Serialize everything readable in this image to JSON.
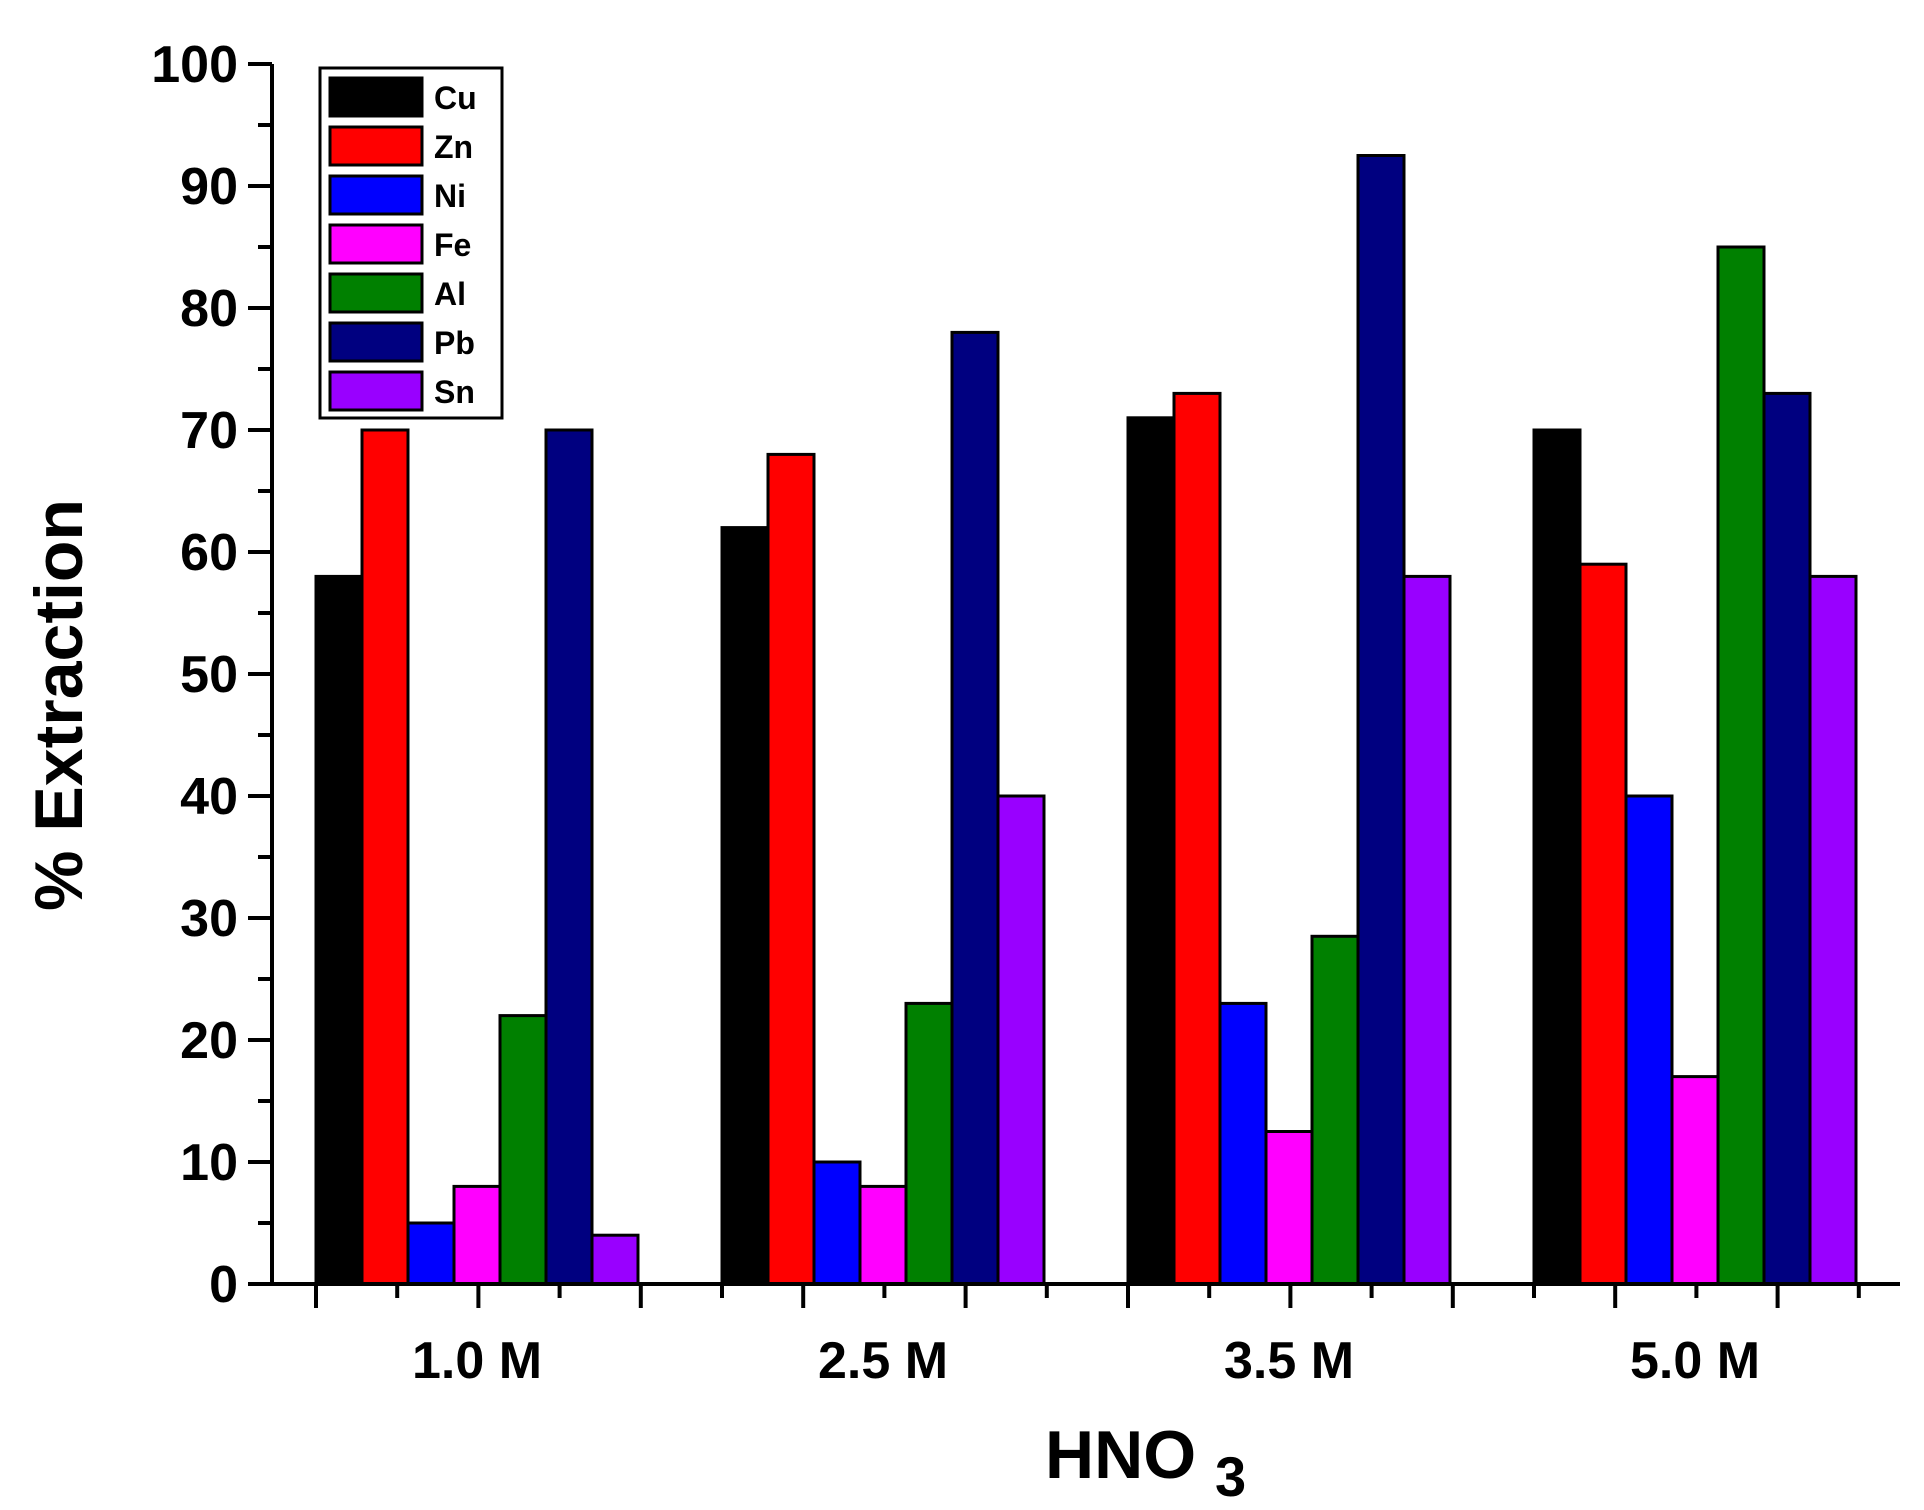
{
  "chart_data": {
    "type": "bar",
    "title": "",
    "xlabel": {
      "main": "HNO",
      "subscript": "3"
    },
    "ylabel": "% Extraction",
    "ylim": [
      0,
      100
    ],
    "yticks": [
      "0",
      "10",
      "20",
      "30",
      "40",
      "50",
      "60",
      "70",
      "80",
      "90",
      "100"
    ],
    "categories": [
      "1.0 M",
      "2.5 M",
      "3.5 M",
      "5.0 M"
    ],
    "legend_position": "top-left",
    "series": [
      {
        "name": "Cu",
        "color": "#000000",
        "values": [
          58,
          62,
          71,
          70
        ]
      },
      {
        "name": "Zn",
        "color": "#ff0000",
        "values": [
          70,
          68,
          73,
          59
        ]
      },
      {
        "name": "Ni",
        "color": "#0000ff",
        "values": [
          5,
          10,
          23,
          40
        ]
      },
      {
        "name": "Fe",
        "color": "#ff00ff",
        "values": [
          8,
          8,
          12.5,
          17
        ]
      },
      {
        "name": "Al",
        "color": "#008000",
        "values": [
          22,
          23,
          28.5,
          85
        ]
      },
      {
        "name": "Pb",
        "color": "#000080",
        "values": [
          70,
          78,
          92.5,
          73
        ]
      },
      {
        "name": "Sn",
        "color": "#9900ff",
        "values": [
          4,
          40,
          58,
          58
        ]
      }
    ]
  }
}
